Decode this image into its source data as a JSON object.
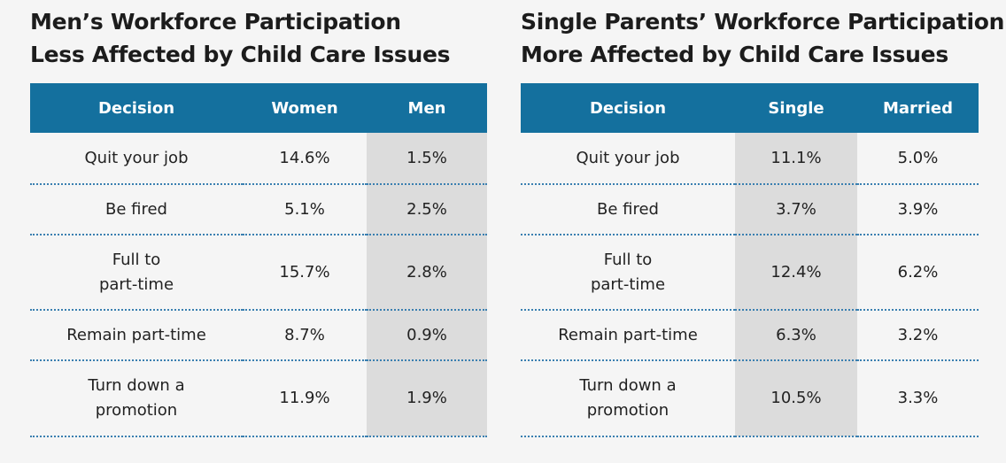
{
  "chart_data": [
    {
      "type": "table",
      "title_line1": "Men’s Workforce Participation",
      "title_line2": "Less Affected by Child Care Issues",
      "columns": [
        "Decision",
        "Women",
        "Men"
      ],
      "rows": [
        {
          "decision_lines": [
            "Quit your job"
          ],
          "values": [
            "14.6%",
            "1.5%"
          ]
        },
        {
          "decision_lines": [
            "Be fired"
          ],
          "values": [
            "5.1%",
            "2.5%"
          ]
        },
        {
          "decision_lines": [
            "Full to",
            "part-time"
          ],
          "values": [
            "15.7%",
            "2.8%"
          ]
        },
        {
          "decision_lines": [
            "Remain part-time"
          ],
          "values": [
            "8.7%",
            "0.9%"
          ]
        },
        {
          "decision_lines": [
            "Turn down a",
            "promotion"
          ],
          "values": [
            "11.9%",
            "1.9%"
          ]
        }
      ],
      "highlighted_column": "Men"
    },
    {
      "type": "table",
      "title_line1": "Single Parents’ Workforce Participation",
      "title_line2": "More Affected by Child Care Issues",
      "columns": [
        "Decision",
        "Single",
        "Married"
      ],
      "rows": [
        {
          "decision_lines": [
            "Quit your job"
          ],
          "values": [
            "11.1%",
            "5.0%"
          ]
        },
        {
          "decision_lines": [
            "Be fired"
          ],
          "values": [
            "3.7%",
            "3.9%"
          ]
        },
        {
          "decision_lines": [
            "Full to",
            "part-time"
          ],
          "values": [
            "12.4%",
            "6.2%"
          ]
        },
        {
          "decision_lines": [
            "Remain part-time"
          ],
          "values": [
            "6.3%",
            "3.2%"
          ]
        },
        {
          "decision_lines": [
            "Turn down a",
            "promotion"
          ],
          "values": [
            "10.5%",
            "3.3%"
          ]
        }
      ],
      "highlighted_column": "Single"
    }
  ],
  "colors": {
    "header_bg": "#14709e",
    "highlight_bg": "#dcdcdc",
    "row_divider": "#3a7fb0",
    "page_bg": "#f5f5f5"
  }
}
